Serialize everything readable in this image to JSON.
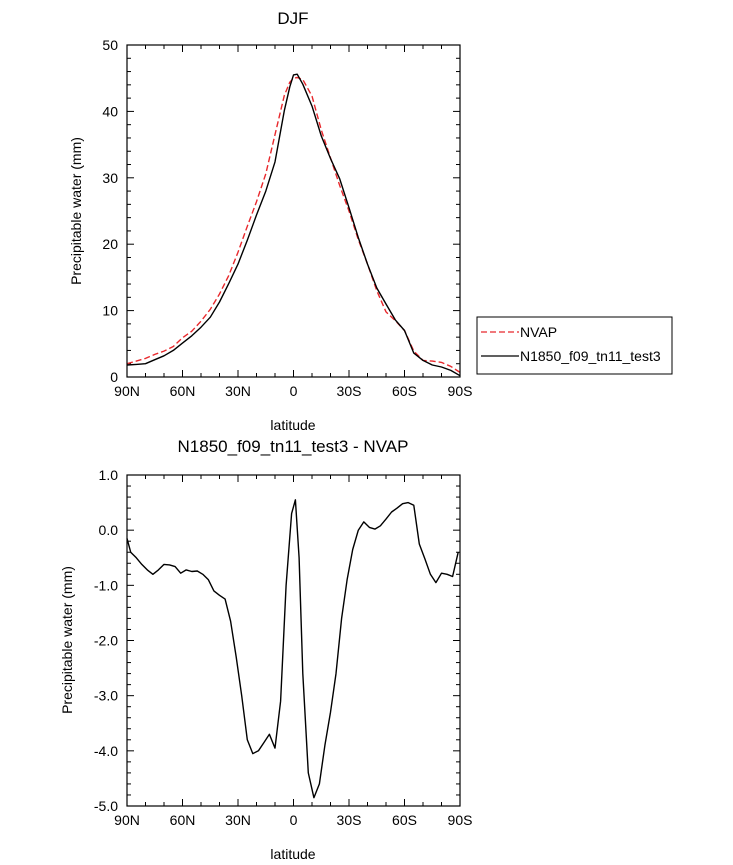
{
  "chart_data": [
    {
      "type": "line",
      "title": "DJF",
      "xlabel": "latitude",
      "ylabel": "Precipitable water (mm)",
      "xlim": [
        90,
        -90
      ],
      "ylim": [
        0,
        50
      ],
      "x_ticks": [
        {
          "value": 90,
          "label": "90N"
        },
        {
          "value": 60,
          "label": "60N"
        },
        {
          "value": 30,
          "label": "30N"
        },
        {
          "value": 0,
          "label": "0"
        },
        {
          "value": -30,
          "label": "30S"
        },
        {
          "value": -60,
          "label": "60S"
        },
        {
          "value": -90,
          "label": "90S"
        }
      ],
      "y_ticks": [
        {
          "value": 0,
          "label": "0"
        },
        {
          "value": 10,
          "label": "10"
        },
        {
          "value": 20,
          "label": "20"
        },
        {
          "value": 30,
          "label": "30"
        },
        {
          "value": 40,
          "label": "40"
        },
        {
          "value": 50,
          "label": "50"
        }
      ],
      "grid": false,
      "legend_position": "right",
      "series": [
        {
          "name": "NVAP",
          "color": "#e8282c",
          "dash": "dashed",
          "x": [
            90,
            85,
            80,
            75,
            70,
            65,
            60,
            55,
            50,
            45,
            40,
            35,
            30,
            25,
            20,
            15,
            10,
            5,
            2,
            0,
            -2,
            -5,
            -10,
            -15,
            -20,
            -25,
            -30,
            -35,
            -40,
            -45,
            -50,
            -55,
            -60,
            -65,
            -70,
            -75,
            -80,
            -85,
            -90
          ],
          "y": [
            2.0,
            2.4,
            2.8,
            3.4,
            3.9,
            4.6,
            5.9,
            6.9,
            8.4,
            10.2,
            12.5,
            15.3,
            18.8,
            22.7,
            26.4,
            30.6,
            36.5,
            42.4,
            44.4,
            45.0,
            45.1,
            44.8,
            42.3,
            37.2,
            33.0,
            28.8,
            25.0,
            20.7,
            17.0,
            13.0,
            9.8,
            8.5,
            7.0,
            3.9,
            2.5,
            2.4,
            2.2,
            1.6,
            0.7
          ]
        },
        {
          "name": "N1850_f09_tn11_test3",
          "color": "#000000",
          "dash": "solid",
          "x": [
            90,
            85,
            80,
            75,
            70,
            65,
            60,
            55,
            50,
            45,
            40,
            35,
            30,
            25,
            20,
            15,
            10,
            5,
            2,
            0,
            -2,
            -5,
            -10,
            -15,
            -20,
            -25,
            -30,
            -35,
            -40,
            -45,
            -50,
            -55,
            -60,
            -65,
            -70,
            -75,
            -80,
            -85,
            -90
          ],
          "y": [
            1.8,
            1.9,
            2.0,
            2.6,
            3.2,
            4.0,
            5.1,
            6.2,
            7.5,
            9.0,
            11.3,
            14.1,
            17.0,
            20.6,
            24.4,
            28.0,
            32.4,
            40.1,
            43.7,
            45.5,
            45.6,
            44.1,
            40.8,
            36.3,
            32.9,
            29.8,
            25.5,
            21.0,
            17.0,
            13.4,
            11.0,
            8.6,
            7.0,
            3.6,
            2.5,
            1.8,
            1.5,
            1.0,
            0.2
          ]
        }
      ]
    },
    {
      "type": "line",
      "title": "N1850_f09_tn11_test3 - NVAP",
      "xlabel": "latitude",
      "ylabel": "Precipitable water (mm)",
      "xlim": [
        90,
        -90
      ],
      "ylim": [
        -5.0,
        1.0
      ],
      "x_ticks": [
        {
          "value": 90,
          "label": "90N"
        },
        {
          "value": 60,
          "label": "60N"
        },
        {
          "value": 30,
          "label": "30N"
        },
        {
          "value": 0,
          "label": "0"
        },
        {
          "value": -30,
          "label": "30S"
        },
        {
          "value": -60,
          "label": "60S"
        },
        {
          "value": -90,
          "label": "90S"
        }
      ],
      "y_ticks": [
        {
          "value": -5.0,
          "label": "-5.0"
        },
        {
          "value": -4.0,
          "label": "-4.0"
        },
        {
          "value": -3.0,
          "label": "-3.0"
        },
        {
          "value": -2.0,
          "label": "-2.0"
        },
        {
          "value": -1.0,
          "label": "-1.0"
        },
        {
          "value": 0.0,
          "label": "0.0"
        },
        {
          "value": 1.0,
          "label": "1.0"
        }
      ],
      "grid": false,
      "series": [
        {
          "name": "N1850_f09_tn11_test3 - NVAP",
          "color": "#000000",
          "dash": "solid",
          "x": [
            90,
            88,
            85,
            82,
            79,
            76,
            73,
            70,
            67,
            64,
            61,
            58,
            55,
            52,
            49,
            46,
            43,
            40,
            37,
            34,
            31,
            28,
            25,
            22,
            19,
            16,
            13,
            10,
            7,
            4,
            1,
            -1,
            -3,
            -5,
            -8,
            -11,
            -14,
            -17,
            -20,
            -23,
            -26,
            -29,
            -32,
            -35,
            -38,
            -41,
            -44,
            -47,
            -50,
            -53,
            -56,
            -59,
            -62,
            -65,
            -68,
            -71,
            -74,
            -77,
            -80,
            -83,
            -86,
            -89
          ],
          "y": [
            -0.15,
            -0.4,
            -0.5,
            -0.62,
            -0.72,
            -0.8,
            -0.72,
            -0.62,
            -0.63,
            -0.66,
            -0.78,
            -0.72,
            -0.75,
            -0.74,
            -0.8,
            -0.9,
            -1.1,
            -1.18,
            -1.25,
            -1.65,
            -2.3,
            -3.0,
            -3.8,
            -4.05,
            -4.0,
            -3.85,
            -3.7,
            -3.95,
            -3.1,
            -1.0,
            0.3,
            0.55,
            -0.5,
            -2.6,
            -4.4,
            -4.85,
            -4.6,
            -3.9,
            -3.3,
            -2.6,
            -1.6,
            -0.9,
            -0.35,
            0.0,
            0.15,
            0.05,
            0.02,
            0.08,
            0.2,
            0.33,
            0.4,
            0.48,
            0.5,
            0.45,
            -0.25,
            -0.52,
            -0.8,
            -0.95,
            -0.78,
            -0.8,
            -0.84,
            -0.4
          ]
        }
      ]
    }
  ]
}
